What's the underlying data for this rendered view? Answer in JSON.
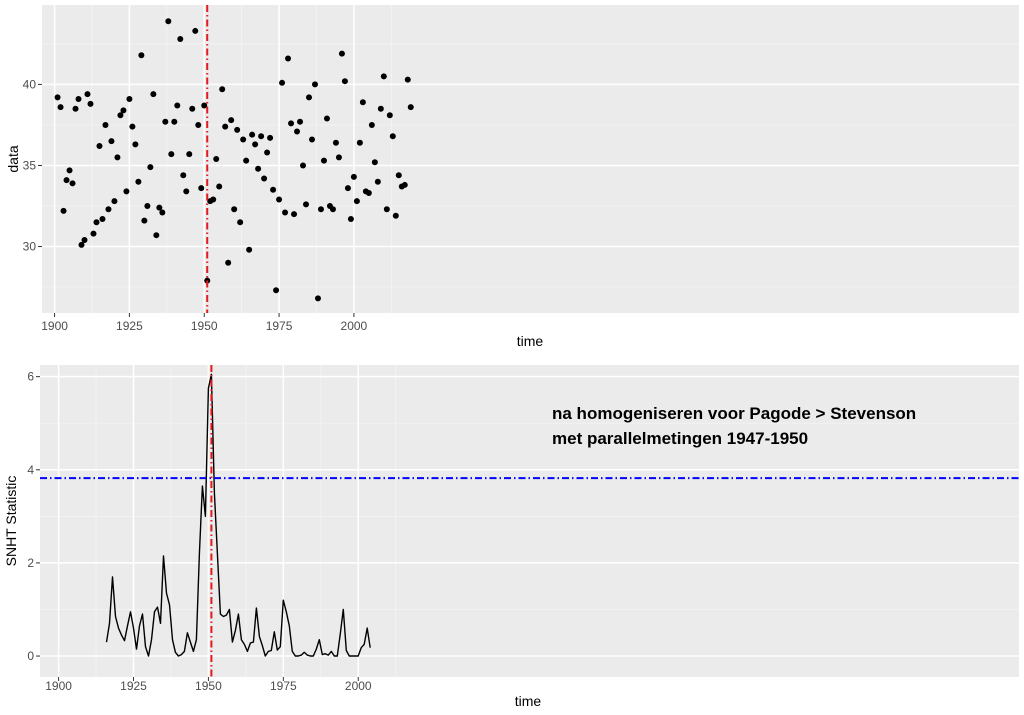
{
  "chart_data": [
    {
      "type": "scatter",
      "xlabel": "time",
      "ylabel": "data",
      "xlim": [
        1895.8,
        2222.2
      ],
      "ylim": [
        25.9,
        44.9
      ],
      "xticks": [
        1900,
        1925,
        1950,
        1975,
        2000
      ],
      "yticks": [
        30,
        35,
        40
      ],
      "grid": true,
      "vline": {
        "x": 1951,
        "color": "#e41a1c",
        "style": "dashdot"
      },
      "x": [
        1901,
        1902,
        1903,
        1904,
        1905,
        1906,
        1907,
        1908,
        1909,
        1910,
        1911,
        1912,
        1913,
        1914,
        1915,
        1916,
        1917,
        1918,
        1919,
        1920,
        1921,
        1922,
        1923,
        1924,
        1925,
        1926,
        1927,
        1928,
        1929,
        1930,
        1931,
        1932,
        1933,
        1934,
        1935,
        1936,
        1937,
        1938,
        1939,
        1940,
        1941,
        1942,
        1943,
        1944,
        1945,
        1946,
        1947,
        1948,
        1949,
        1950,
        1951,
        1952,
        1953,
        1954,
        1955,
        1956,
        1957,
        1958,
        1959,
        1960,
        1961,
        1962,
        1963,
        1964,
        1965,
        1966,
        1967,
        1968,
        1969,
        1970,
        1971,
        1972,
        1973,
        1974,
        1975,
        1976,
        1977,
        1978,
        1979,
        1980,
        1981,
        1982,
        1983,
        1984,
        1985,
        1986,
        1987,
        1988,
        1989,
        1990,
        1991,
        1992,
        1993,
        1994,
        1995,
        1996,
        1997,
        1998,
        1999,
        2000,
        2001,
        2002,
        2003,
        2004,
        2005,
        2006,
        2007,
        2008,
        2009,
        2010,
        2011,
        2012,
        2013,
        2014,
        2015,
        2016,
        2017,
        2018,
        2019
      ],
      "y": [
        39.2,
        38.6,
        32.2,
        34.1,
        34.7,
        33.9,
        38.5,
        39.1,
        30.1,
        30.4,
        39.4,
        38.8,
        30.8,
        31.5,
        36.2,
        31.7,
        37.5,
        32.3,
        36.5,
        32.8,
        35.5,
        38.1,
        38.4,
        33.4,
        39.1,
        37.4,
        36.3,
        34.0,
        41.8,
        31.6,
        32.5,
        34.9,
        39.4,
        30.7,
        32.4,
        32.1,
        37.7,
        43.9,
        35.7,
        37.7,
        38.7,
        42.8,
        34.4,
        33.4,
        35.7,
        38.5,
        43.3,
        37.5,
        33.6,
        38.7,
        27.9,
        32.8,
        32.9,
        35.4,
        33.7,
        39.7,
        37.4,
        29.0,
        37.8,
        32.3,
        37.2,
        31.5,
        36.6,
        35.3,
        29.8,
        36.9,
        36.3,
        34.8,
        36.8,
        34.2,
        35.8,
        36.7,
        33.5,
        27.3,
        32.9,
        40.1,
        32.1,
        41.6,
        37.6,
        32.0,
        37.1,
        37.7,
        35.0,
        32.6,
        39.2,
        36.6,
        40.0,
        26.8,
        32.3,
        35.3,
        37.9,
        32.5,
        32.3,
        36.4,
        35.5,
        41.9,
        40.2,
        33.6,
        31.7,
        34.3,
        32.8,
        36.4,
        38.9,
        33.4,
        33.3,
        37.5,
        35.2,
        34.0,
        38.5,
        40.5,
        32.3,
        38.1,
        36.8,
        31.9,
        34.4,
        33.7,
        33.8,
        40.3,
        38.6
      ]
    },
    {
      "type": "line",
      "xlabel": "time",
      "ylabel": "SNHT Statistic",
      "xlim": [
        1893.8,
        2220.5
      ],
      "ylim": [
        -0.45,
        6.25
      ],
      "xticks": [
        1900,
        1925,
        1950,
        1975,
        2000
      ],
      "yticks": [
        0,
        2,
        4,
        6
      ],
      "grid": true,
      "annotation": [
        "na homogeniseren voor Pagode > Stevenson",
        "met parallelmetingen 1947-1950"
      ],
      "vline": {
        "x": 1951,
        "color": "#e41a1c",
        "style": "dashdot"
      },
      "hline": {
        "y": 3.82,
        "color": "#0000ff",
        "style": "dashdot"
      },
      "x": [
        1916,
        1917,
        1918,
        1919,
        1920,
        1921,
        1922,
        1923,
        1924,
        1925,
        1926,
        1927,
        1928,
        1929,
        1930,
        1931,
        1932,
        1933,
        1934,
        1935,
        1936,
        1937,
        1938,
        1939,
        1940,
        1941,
        1942,
        1943,
        1944,
        1945,
        1946,
        1947,
        1948,
        1949,
        1950,
        1951,
        1952,
        1953,
        1954,
        1955,
        1956,
        1957,
        1958,
        1959,
        1960,
        1961,
        1962,
        1963,
        1964,
        1965,
        1966,
        1967,
        1968,
        1969,
        1970,
        1971,
        1972,
        1973,
        1974,
        1975,
        1976,
        1977,
        1978,
        1979,
        1980,
        1981,
        1982,
        1983,
        1984,
        1985,
        1986,
        1987,
        1988,
        1989,
        1990,
        1991,
        1992,
        1993,
        1994,
        1995,
        1996,
        1997,
        1998,
        1999,
        2000,
        2001,
        2002,
        2003,
        2004
      ],
      "y": [
        0.3,
        0.7,
        1.7,
        0.85,
        0.6,
        0.45,
        0.33,
        0.65,
        0.95,
        0.6,
        0.15,
        0.65,
        0.9,
        0.2,
        0.0,
        0.35,
        0.95,
        1.05,
        0.7,
        2.15,
        1.35,
        1.1,
        0.35,
        0.08,
        0.0,
        0.03,
        0.1,
        0.5,
        0.3,
        0.1,
        0.35,
        2.2,
        3.65,
        3.0,
        5.75,
        6.05,
        3.5,
        2.2,
        0.9,
        0.85,
        0.88,
        1.0,
        0.3,
        0.55,
        0.9,
        0.35,
        0.25,
        0.1,
        0.28,
        0.3,
        1.03,
        0.42,
        0.22,
        0.0,
        0.1,
        0.12,
        0.52,
        0.13,
        0.2,
        1.2,
        0.95,
        0.65,
        0.1,
        0.0,
        0.0,
        0.02,
        0.08,
        0.02,
        0.0,
        0.0,
        0.15,
        0.35,
        0.03,
        0.05,
        0.02,
        0.1,
        0.0,
        0.0,
        0.48,
        1.0,
        0.12,
        0.0,
        0.0,
        0.0,
        0.0,
        0.18,
        0.25,
        0.6,
        0.18
      ]
    }
  ]
}
